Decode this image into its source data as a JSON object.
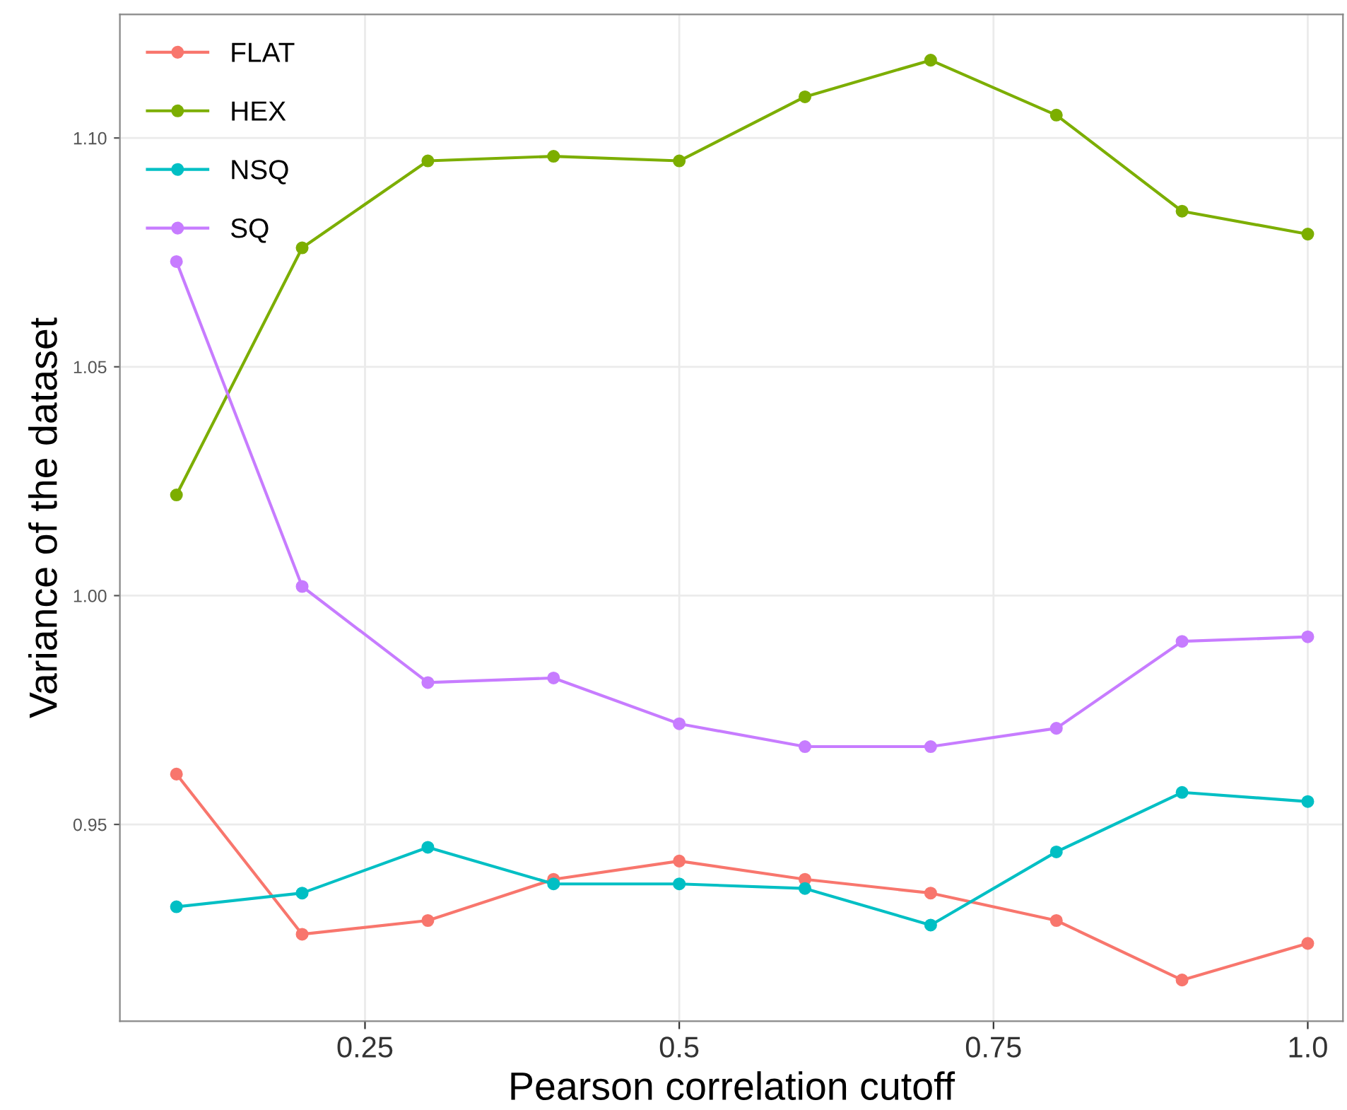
{
  "chart_data": {
    "type": "line",
    "xlabel": "Pearson correlation cutoff",
    "ylabel": "Variance of the dataset",
    "x": [
      0.1,
      0.2,
      0.3,
      0.4,
      0.5,
      0.6,
      0.7,
      0.8,
      0.9,
      1.0
    ],
    "series": [
      {
        "name": "FLAT",
        "color": "#f8766d",
        "values": [
          0.961,
          0.926,
          0.929,
          0.938,
          0.942,
          0.938,
          0.935,
          0.929,
          0.916,
          0.924
        ]
      },
      {
        "name": "HEX",
        "color": "#7cae00",
        "values": [
          1.022,
          1.076,
          1.095,
          1.096,
          1.095,
          1.109,
          1.117,
          1.105,
          1.084,
          1.079
        ]
      },
      {
        "name": "NSQ",
        "color": "#00bfc4",
        "values": [
          0.932,
          0.935,
          0.945,
          0.937,
          0.937,
          0.936,
          0.928,
          0.944,
          0.957,
          0.955
        ]
      },
      {
        "name": "SQ",
        "color": "#c77cff",
        "values": [
          1.073,
          1.002,
          0.981,
          0.982,
          0.972,
          0.967,
          0.967,
          0.971,
          0.99,
          0.991
        ]
      }
    ],
    "xlim": [
      0.055,
      1.028
    ],
    "ylim": [
      0.907,
      1.127
    ],
    "xticks": [
      0.25,
      0.5,
      0.75,
      {
        "value": 1.0,
        "label": "1.0"
      }
    ],
    "yticks": [
      {
        "value": 0.95,
        "label": "0.95"
      },
      {
        "value": 1.0,
        "label": "1.00"
      },
      {
        "value": 1.05,
        "label": "1.05"
      },
      {
        "value": 1.1,
        "label": "1.10"
      }
    ],
    "grid": true,
    "legend": "top left",
    "marker": "circle",
    "line_style": "solid"
  }
}
